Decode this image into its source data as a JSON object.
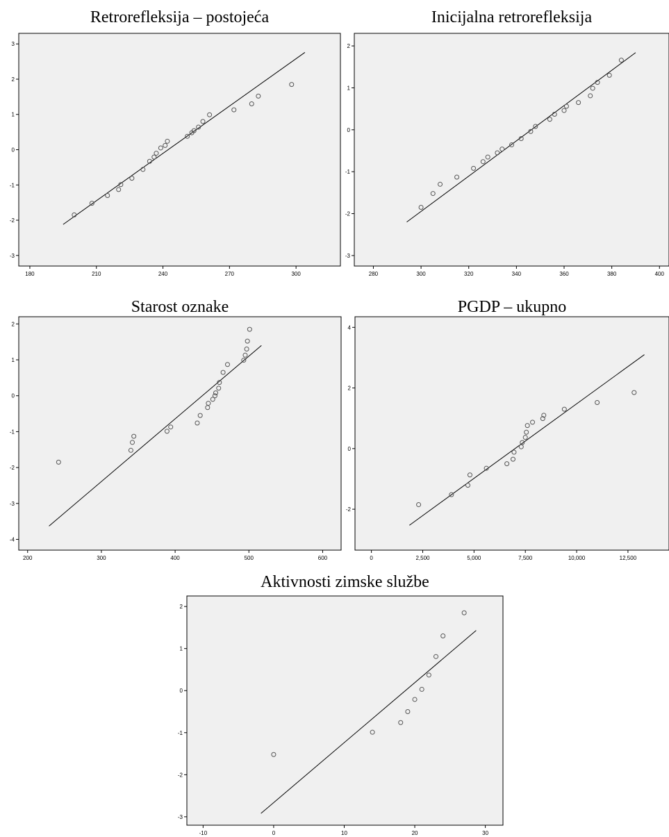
{
  "chart_data": [
    {
      "type": "scatter",
      "title": "Retrorefleksija – postojeća",
      "xlim": [
        175,
        320
      ],
      "ylim": [
        -3.3,
        3.3
      ],
      "xticks": [
        180,
        210,
        240,
        270,
        300
      ],
      "yticks": [
        -3,
        -2,
        -1,
        0,
        1,
        2,
        3
      ],
      "tick_format": "plain",
      "points": [
        [
          200,
          -1.85
        ],
        [
          208,
          -1.52
        ],
        [
          215,
          -1.3
        ],
        [
          220,
          -1.13
        ],
        [
          221,
          -0.99
        ],
        [
          226,
          -0.81
        ],
        [
          231,
          -0.56
        ],
        [
          234,
          -0.33
        ],
        [
          236,
          -0.21
        ],
        [
          237,
          -0.1
        ],
        [
          239,
          0.05
        ],
        [
          241,
          0.12
        ],
        [
          242,
          0.24
        ],
        [
          251,
          0.38
        ],
        [
          253,
          0.48
        ],
        [
          254,
          0.54
        ],
        [
          256,
          0.64
        ],
        [
          258,
          0.8
        ],
        [
          261,
          0.99
        ],
        [
          272,
          1.13
        ],
        [
          280,
          1.3
        ],
        [
          283,
          1.52
        ],
        [
          298,
          1.85
        ]
      ],
      "line": [
        [
          195,
          -2.12
        ],
        [
          304,
          2.76
        ]
      ]
    },
    {
      "type": "scatter",
      "title": "Inicijalna retrorefleksija",
      "xlim": [
        272,
        404
      ],
      "ylim": [
        -3.25,
        2.3
      ],
      "xticks": [
        280,
        300,
        320,
        340,
        360,
        380,
        400
      ],
      "yticks": [
        -3,
        -2,
        -1,
        0,
        1,
        2
      ],
      "tick_format": "plain",
      "points": [
        [
          300,
          -1.85
        ],
        [
          305,
          -1.52
        ],
        [
          308,
          -1.3
        ],
        [
          315,
          -1.13
        ],
        [
          322,
          -0.92
        ],
        [
          326,
          -0.76
        ],
        [
          328,
          -0.65
        ],
        [
          332,
          -0.55
        ],
        [
          334,
          -0.46
        ],
        [
          338,
          -0.36
        ],
        [
          342,
          -0.21
        ],
        [
          346,
          -0.04
        ],
        [
          348,
          0.08
        ],
        [
          354,
          0.25
        ],
        [
          356,
          0.37
        ],
        [
          360,
          0.46
        ],
        [
          361,
          0.56
        ],
        [
          366,
          0.65
        ],
        [
          371,
          0.81
        ],
        [
          372,
          0.99
        ],
        [
          374,
          1.13
        ],
        [
          379,
          1.3
        ],
        [
          384,
          1.66
        ]
      ],
      "line": [
        [
          294,
          -2.2
        ],
        [
          390,
          1.84
        ]
      ]
    },
    {
      "type": "scatter",
      "title": "Starost oznake",
      "xlim": [
        188,
        625
      ],
      "ylim": [
        -4.3,
        2.2
      ],
      "xticks": [
        200,
        300,
        400,
        500,
        600
      ],
      "yticks": [
        -4,
        -3,
        -2,
        -1,
        0,
        1,
        2
      ],
      "tick_format": "plain",
      "points": [
        [
          242,
          -1.85
        ],
        [
          340,
          -1.52
        ],
        [
          342,
          -1.3
        ],
        [
          344,
          -1.13
        ],
        [
          389,
          -0.99
        ],
        [
          394,
          -0.87
        ],
        [
          430,
          -0.76
        ],
        [
          434,
          -0.55
        ],
        [
          444,
          -0.33
        ],
        [
          445,
          -0.21
        ],
        [
          451,
          -0.1
        ],
        [
          454,
          0.0
        ],
        [
          455,
          0.08
        ],
        [
          459,
          0.21
        ],
        [
          460,
          0.37
        ],
        [
          465,
          0.65
        ],
        [
          471,
          0.87
        ],
        [
          493,
          0.99
        ],
        [
          495,
          1.13
        ],
        [
          497,
          1.3
        ],
        [
          498,
          1.52
        ],
        [
          501,
          1.85
        ]
      ],
      "line": [
        [
          229,
          -3.63
        ],
        [
          517,
          1.4
        ]
      ]
    },
    {
      "type": "scatter",
      "title": "PGDP – ukupno",
      "xlim": [
        -800,
        14500
      ],
      "ylim": [
        -3.35,
        4.35
      ],
      "xticks": [
        0,
        2500,
        5000,
        7500,
        10000,
        12500
      ],
      "yticks": [
        -2,
        0,
        2,
        4
      ],
      "tick_format": "thousands",
      "points": [
        [
          2300,
          -1.85
        ],
        [
          3900,
          -1.52
        ],
        [
          4700,
          -1.21
        ],
        [
          4800,
          -0.87
        ],
        [
          5600,
          -0.65
        ],
        [
          6600,
          -0.5
        ],
        [
          6900,
          -0.35
        ],
        [
          6950,
          -0.12
        ],
        [
          7300,
          0.06
        ],
        [
          7350,
          0.2
        ],
        [
          7500,
          0.37
        ],
        [
          7550,
          0.54
        ],
        [
          7600,
          0.76
        ],
        [
          7850,
          0.87
        ],
        [
          8350,
          0.99
        ],
        [
          8400,
          1.1
        ],
        [
          9400,
          1.3
        ],
        [
          11000,
          1.52
        ],
        [
          12800,
          1.85
        ]
      ],
      "line": [
        [
          1850,
          -2.53
        ],
        [
          13300,
          3.1
        ]
      ]
    },
    {
      "type": "scatter",
      "title": "Aktivnosti zimske službe",
      "xlim": [
        -12.3,
        32.5
      ],
      "ylim": [
        -3.2,
        2.25
      ],
      "xticks": [
        -10,
        0,
        10,
        20,
        30
      ],
      "yticks": [
        -3,
        -2,
        -1,
        0,
        1,
        2
      ],
      "tick_format": "plain",
      "points": [
        [
          0,
          -1.52
        ],
        [
          14,
          -0.99
        ],
        [
          18,
          -0.76
        ],
        [
          19,
          -0.5
        ],
        [
          20,
          -0.21
        ],
        [
          21,
          0.03
        ],
        [
          22,
          0.37
        ],
        [
          23,
          0.81
        ],
        [
          24,
          1.3
        ],
        [
          27,
          1.85
        ]
      ],
      "line": [
        [
          -1.8,
          -2.92
        ],
        [
          28.7,
          1.43
        ]
      ]
    }
  ]
}
